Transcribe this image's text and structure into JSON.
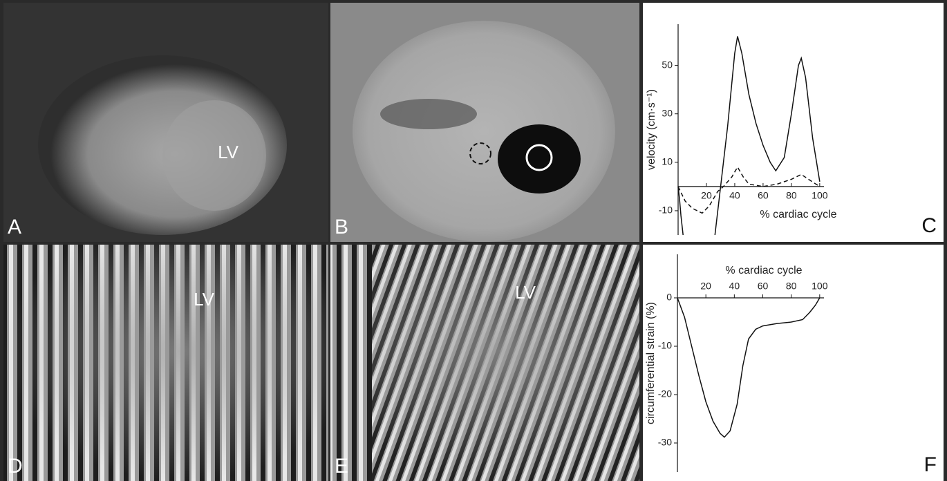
{
  "panels": [
    {
      "label": "A",
      "annotation": "LV"
    },
    {
      "label": "B"
    },
    {
      "label": "D",
      "annotation": "LV"
    },
    {
      "label": "E",
      "annotation": "LV"
    }
  ],
  "chart_data": [
    {
      "type": "line",
      "panel_label": "C",
      "xlabel": "% cardiac cycle",
      "ylabel": "velocity (cm·s⁻¹)",
      "xlim": [
        0,
        103
      ],
      "ylim": [
        -20,
        67
      ],
      "xticks": [
        20,
        40,
        60,
        80,
        100
      ],
      "yticks": [
        -10,
        10,
        30,
        50
      ],
      "series": [
        {
          "color": "#111111",
          "dash": false,
          "x": [
            0,
            1,
            2,
            3.5,
            22,
            26,
            30,
            35,
            40,
            42,
            45,
            50,
            55,
            60,
            65,
            69,
            75,
            80,
            85,
            87,
            90,
            95,
            100
          ],
          "values": [
            0,
            -5,
            -12,
            -20,
            null,
            -20,
            0,
            25,
            55,
            62,
            55,
            38,
            26,
            17,
            10,
            6.5,
            12,
            30,
            50,
            53,
            45,
            20,
            2
          ]
        },
        {
          "color": "#111111",
          "dash": true,
          "x": [
            0,
            5,
            10,
            17,
            22,
            28,
            32,
            38,
            42,
            46,
            50,
            60,
            70,
            80,
            87,
            92,
            100
          ],
          "values": [
            0,
            -6,
            -9,
            -11,
            -8,
            -2,
            0,
            4,
            8,
            4,
            1,
            0,
            1,
            3,
            5,
            3,
            0
          ]
        }
      ]
    },
    {
      "type": "line",
      "panel_label": "F",
      "xlabel": "% cardiac cycle",
      "ylabel": "circumferential strain (%)",
      "xlim": [
        0,
        103
      ],
      "ylim": [
        -36,
        9
      ],
      "xticks": [
        20,
        40,
        60,
        80,
        100
      ],
      "yticks": [
        -30,
        -20,
        -10,
        0
      ],
      "series": [
        {
          "color": "#111111",
          "dash": false,
          "x": [
            0,
            5,
            10,
            15,
            20,
            25,
            30,
            33,
            37,
            42,
            46,
            50,
            55,
            60,
            70,
            80,
            88,
            93,
            97,
            100
          ],
          "values": [
            0,
            -4,
            -10,
            -16,
            -21.5,
            -25.5,
            -28,
            -28.8,
            -27.5,
            -22,
            -14,
            -8.5,
            -6.5,
            -5.8,
            -5.3,
            -5,
            -4.5,
            -3,
            -1.5,
            0
          ]
        }
      ]
    }
  ]
}
